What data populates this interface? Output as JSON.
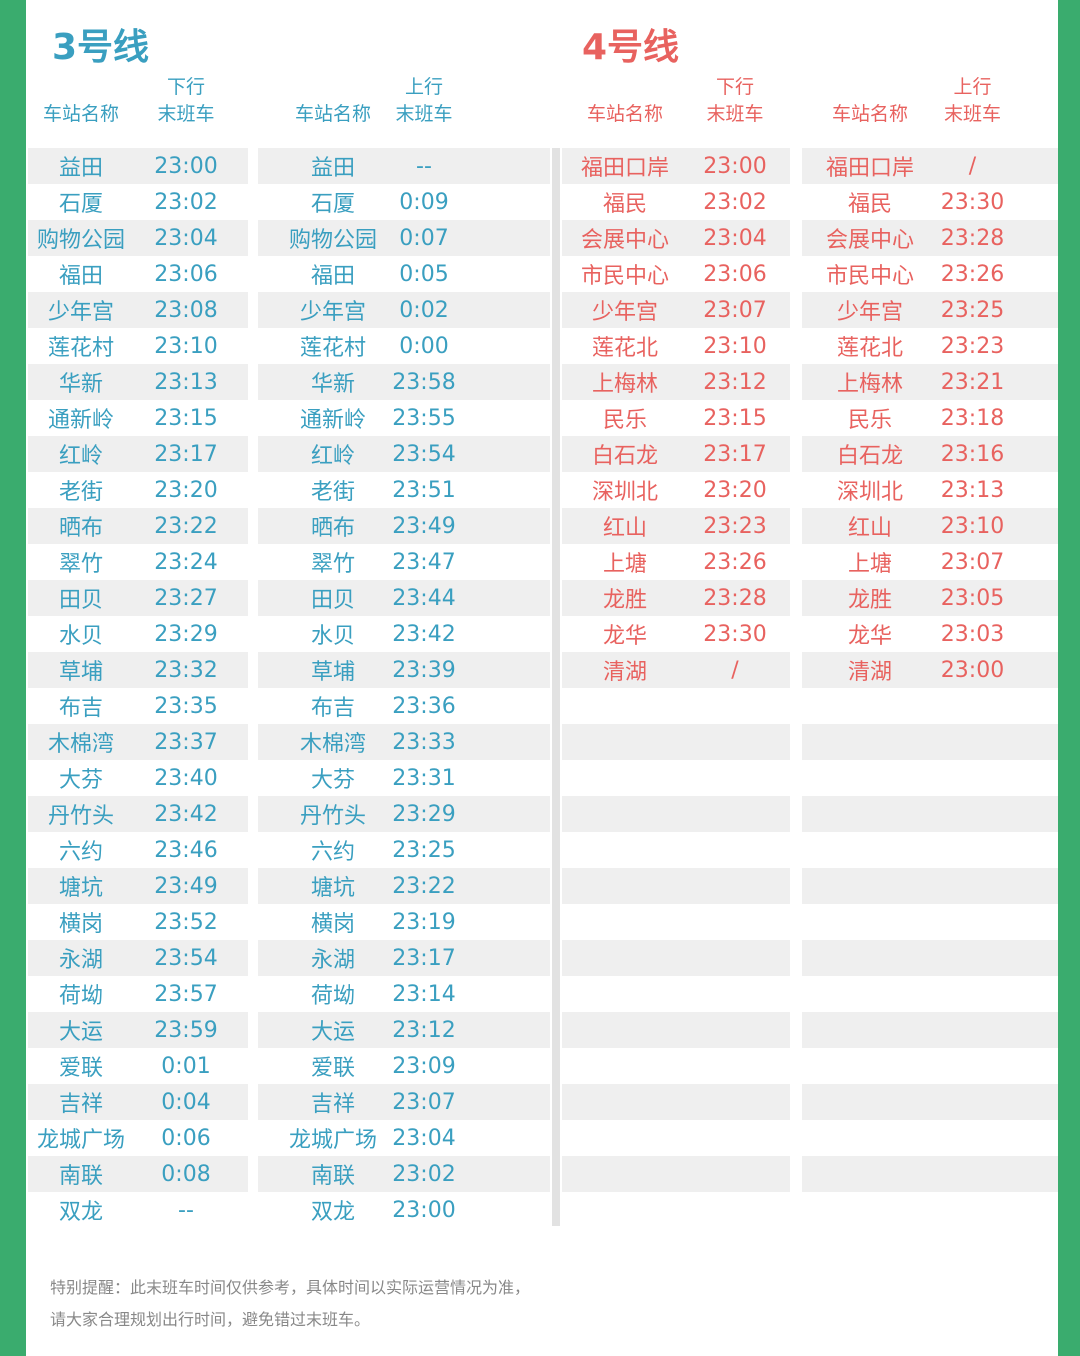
{
  "colors": {
    "line3": "#3a9fc0",
    "line4": "#e8625f",
    "border": "#3aac6e"
  },
  "line3": {
    "title": "3号线",
    "down_header": {
      "station": "车站名称",
      "dir": "下行",
      "last": "末班车"
    },
    "up_header": {
      "station": "车站名称",
      "dir": "上行",
      "last": "末班车"
    },
    "down": [
      [
        "益田",
        "23:00"
      ],
      [
        "石厦",
        "23:02"
      ],
      [
        "购物公园",
        "23:04"
      ],
      [
        "福田",
        "23:06"
      ],
      [
        "少年宫",
        "23:08"
      ],
      [
        "莲花村",
        "23:10"
      ],
      [
        "华新",
        "23:13"
      ],
      [
        "通新岭",
        "23:15"
      ],
      [
        "红岭",
        "23:17"
      ],
      [
        "老街",
        "23:20"
      ],
      [
        "晒布",
        "23:22"
      ],
      [
        "翠竹",
        "23:24"
      ],
      [
        "田贝",
        "23:27"
      ],
      [
        "水贝",
        "23:29"
      ],
      [
        "草埔",
        "23:32"
      ],
      [
        "布吉",
        "23:35"
      ],
      [
        "木棉湾",
        "23:37"
      ],
      [
        "大芬",
        "23:40"
      ],
      [
        "丹竹头",
        "23:42"
      ],
      [
        "六约",
        "23:46"
      ],
      [
        "塘坑",
        "23:49"
      ],
      [
        "横岗",
        "23:52"
      ],
      [
        "永湖",
        "23:54"
      ],
      [
        "荷坳",
        "23:57"
      ],
      [
        "大运",
        "23:59"
      ],
      [
        "爱联",
        "0:01"
      ],
      [
        "吉祥",
        "0:04"
      ],
      [
        "龙城广场",
        "0:06"
      ],
      [
        "南联",
        "0:08"
      ],
      [
        "双龙",
        "--"
      ]
    ],
    "up": [
      [
        "益田",
        "--"
      ],
      [
        "石厦",
        "0:09"
      ],
      [
        "购物公园",
        "0:07"
      ],
      [
        "福田",
        "0:05"
      ],
      [
        "少年宫",
        "0:02"
      ],
      [
        "莲花村",
        "0:00"
      ],
      [
        "华新",
        "23:58"
      ],
      [
        "通新岭",
        "23:55"
      ],
      [
        "红岭",
        "23:54"
      ],
      [
        "老街",
        "23:51"
      ],
      [
        "晒布",
        "23:49"
      ],
      [
        "翠竹",
        "23:47"
      ],
      [
        "田贝",
        "23:44"
      ],
      [
        "水贝",
        "23:42"
      ],
      [
        "草埔",
        "23:39"
      ],
      [
        "布吉",
        "23:36"
      ],
      [
        "木棉湾",
        "23:33"
      ],
      [
        "大芬",
        "23:31"
      ],
      [
        "丹竹头",
        "23:29"
      ],
      [
        "六约",
        "23:25"
      ],
      [
        "塘坑",
        "23:22"
      ],
      [
        "横岗",
        "23:19"
      ],
      [
        "永湖",
        "23:17"
      ],
      [
        "荷坳",
        "23:14"
      ],
      [
        "大运",
        "23:12"
      ],
      [
        "爱联",
        "23:09"
      ],
      [
        "吉祥",
        "23:07"
      ],
      [
        "龙城广场",
        "23:04"
      ],
      [
        "南联",
        "23:02"
      ],
      [
        "双龙",
        "23:00"
      ]
    ]
  },
  "line4": {
    "title": "4号线",
    "down_header": {
      "station": "车站名称",
      "dir": "下行",
      "last": "末班车"
    },
    "up_header": {
      "station": "车站名称",
      "dir": "上行",
      "last": "末班车"
    },
    "down": [
      [
        "福田口岸",
        "23:00"
      ],
      [
        "福民",
        "23:02"
      ],
      [
        "会展中心",
        "23:04"
      ],
      [
        "市民中心",
        "23:06"
      ],
      [
        "少年宫",
        "23:07"
      ],
      [
        "莲花北",
        "23:10"
      ],
      [
        "上梅林",
        "23:12"
      ],
      [
        "民乐",
        "23:15"
      ],
      [
        "白石龙",
        "23:17"
      ],
      [
        "深圳北",
        "23:20"
      ],
      [
        "红山",
        "23:23"
      ],
      [
        "上塘",
        "23:26"
      ],
      [
        "龙胜",
        "23:28"
      ],
      [
        "龙华",
        "23:30"
      ],
      [
        "清湖",
        "/"
      ]
    ],
    "up": [
      [
        "福田口岸",
        "/"
      ],
      [
        "福民",
        "23:30"
      ],
      [
        "会展中心",
        "23:28"
      ],
      [
        "市民中心",
        "23:26"
      ],
      [
        "少年宫",
        "23:25"
      ],
      [
        "莲花北",
        "23:23"
      ],
      [
        "上梅林",
        "23:21"
      ],
      [
        "民乐",
        "23:18"
      ],
      [
        "白石龙",
        "23:16"
      ],
      [
        "深圳北",
        "23:13"
      ],
      [
        "红山",
        "23:10"
      ],
      [
        "上塘",
        "23:07"
      ],
      [
        "龙胜",
        "23:05"
      ],
      [
        "龙华",
        "23:03"
      ],
      [
        "清湖",
        "23:00"
      ]
    ]
  },
  "notice": [
    "特别提醒：此末班车时间仅供参考，具体时间以实际运营情况为准，",
    "请大家合理规划出行时间，避免错过末班车。"
  ]
}
